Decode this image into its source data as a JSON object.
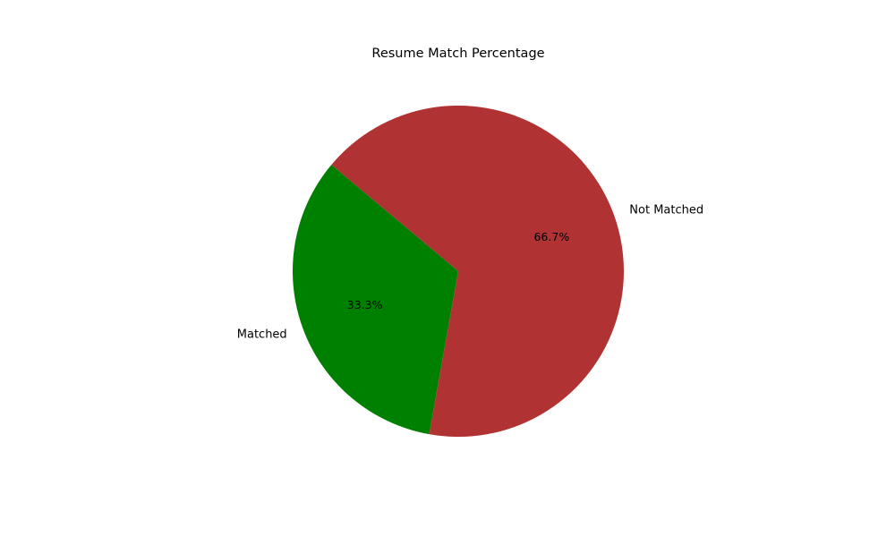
{
  "chart_data": {
    "type": "pie",
    "title": "Resume Match Percentage",
    "slices": [
      {
        "label": "Matched",
        "value": 33.3,
        "pct_label": "33.3%",
        "color": "#008000"
      },
      {
        "label": "Not Matched",
        "value": 66.7,
        "pct_label": "66.7%",
        "color": "#b03232"
      }
    ],
    "start_angle_deg": 140,
    "direction": "counterclockwise"
  }
}
